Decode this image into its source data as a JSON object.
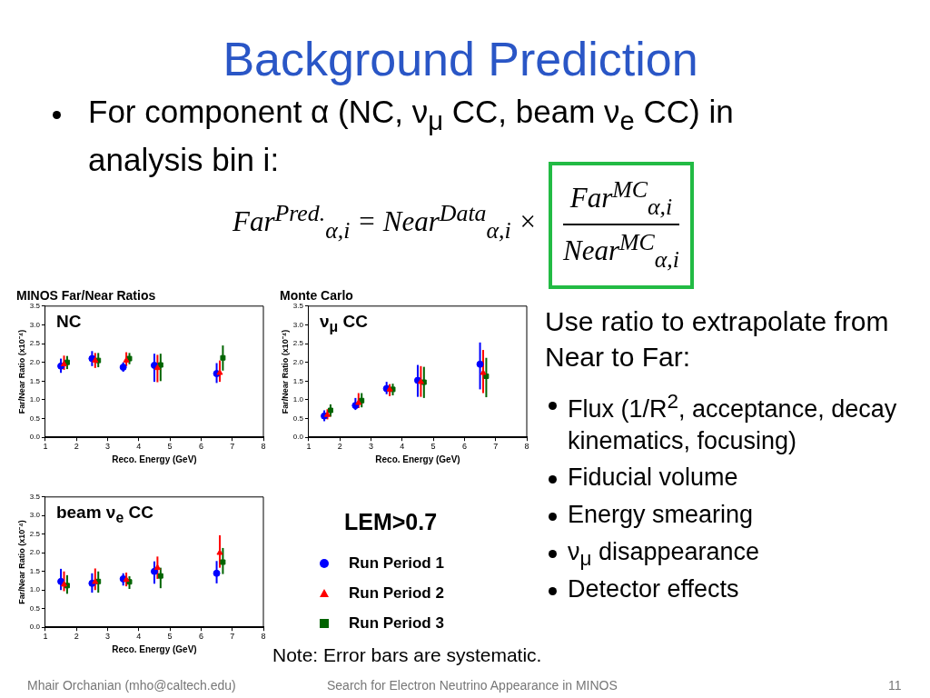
{
  "chart_data": [
    {
      "type": "other",
      "title": "Background Prediction",
      "annotations": [
        "For component α (NC, ν$_{μ}$ CC, beam ν$_{e}$ CC) in analysis bin i:",
        "Far$^{Pred.}$$_{α,i}$ = Near$^{Data}$$_{α,i}$ ×",
        "Far$^{MC}$$_{α,i}$",
        "Near$^{MC}$$_{α,i}$",
        "Use ratio to extrapolate from Near to Far:",
        "Flux (1/R$^{2}$, acceptance, decay kinematics, focusing)",
        "Fiducial volume",
        "Energy smearing",
        "ν$_{μ}$ disappearance",
        "Detector effects",
        "Note: Error bars are systematic.",
        "Mhair Orchanian (mho@caltech.edu)",
        "Search for Electron Neutrino Appearance in MINOS",
        "11"
      ]
    },
    {
      "type": "scatter",
      "title": "MINOS Far/Near Ratios",
      "subtitle": "NC",
      "xlabel": "Reco. Energy (GeV)",
      "ylabel": "Far/Near Ratio (x10⁻⁴)",
      "xlim": [
        1,
        8
      ],
      "xticks": [
        1,
        2,
        3,
        4,
        5,
        6,
        7,
        8
      ],
      "ylim": [
        0,
        3.5
      ],
      "yticks": [
        {
          "value": 0,
          "label": "0.0"
        },
        {
          "value": 0.5,
          "label": "0.5"
        },
        {
          "value": 1,
          "label": "1.0"
        },
        {
          "value": 1.5,
          "label": "1.5"
        },
        {
          "value": 2,
          "label": "2.0"
        },
        {
          "value": 2.5,
          "label": "2.5"
        },
        {
          "value": 3,
          "label": "3.0"
        },
        {
          "value": 3.5,
          "label": "3.5"
        }
      ],
      "series": [
        {
          "color": "#0000ff",
          "marker": "circle",
          "x": [
            1.5,
            2.5,
            3.5,
            4.5,
            6.5
          ],
          "values": [
            1.9,
            2.1,
            1.87,
            1.92,
            1.7
          ],
          "errors": [
            [
              1.72,
              2.1
            ],
            [
              1.9,
              2.3
            ],
            [
              1.75,
              2.0
            ],
            [
              1.48,
              2.23
            ],
            [
              1.45,
              1.98
            ]
          ]
        },
        {
          "color": "#ff0000",
          "marker": "triangle",
          "x": [
            1.6,
            2.6,
            3.6,
            4.6,
            6.6
          ],
          "values": [
            1.95,
            2.05,
            2.05,
            1.85,
            1.72
          ],
          "errors": [
            [
              1.8,
              2.18
            ],
            [
              1.85,
              2.25
            ],
            [
              1.9,
              2.27
            ],
            [
              1.47,
              2.2
            ],
            [
              1.48,
              2.05
            ]
          ]
        },
        {
          "color": "#006400",
          "marker": "square",
          "x": [
            1.7,
            2.7,
            3.7,
            4.7,
            6.7
          ],
          "values": [
            2.0,
            2.05,
            2.1,
            1.93,
            2.12
          ],
          "errors": [
            [
              1.82,
              2.17
            ],
            [
              1.87,
              2.25
            ],
            [
              1.95,
              2.25
            ],
            [
              1.5,
              2.23
            ],
            [
              1.78,
              2.45
            ]
          ]
        }
      ]
    },
    {
      "type": "scatter",
      "title": "Monte Carlo",
      "subtitle": "ν$_{μ}$ CC",
      "xlabel": "Reco. Energy (GeV)",
      "ylabel": "Far/Near Ratio (x10⁻⁴)",
      "xlim": [
        1,
        8
      ],
      "xticks": [
        1,
        2,
        3,
        4,
        5,
        6,
        7,
        8
      ],
      "ylim": [
        0,
        3.5
      ],
      "yticks": [
        {
          "value": 0,
          "label": "0.0"
        },
        {
          "value": 0.5,
          "label": "0.5"
        },
        {
          "value": 1,
          "label": "1.0"
        },
        {
          "value": 1.5,
          "label": "1.5"
        },
        {
          "value": 2,
          "label": "2.0"
        },
        {
          "value": 2.5,
          "label": "2.5"
        },
        {
          "value": 3,
          "label": "3.0"
        },
        {
          "value": 3.5,
          "label": "3.5"
        }
      ],
      "series": [
        {
          "color": "#0000ff",
          "marker": "circle",
          "x": [
            1.5,
            2.5,
            3.5,
            4.5,
            6.5
          ],
          "values": [
            0.57,
            0.85,
            1.3,
            1.52,
            1.95
          ],
          "errors": [
            [
              0.43,
              0.72
            ],
            [
              0.73,
              1.05
            ],
            [
              1.15,
              1.48
            ],
            [
              1.08,
              1.93
            ],
            [
              1.28,
              2.53
            ]
          ]
        },
        {
          "color": "#ff0000",
          "marker": "triangle",
          "x": [
            1.6,
            2.6,
            3.6,
            4.6,
            6.6
          ],
          "values": [
            0.6,
            0.92,
            1.28,
            1.48,
            1.72
          ],
          "errors": [
            [
              0.48,
              0.75
            ],
            [
              0.78,
              1.18
            ],
            [
              1.1,
              1.42
            ],
            [
              1.08,
              1.9
            ],
            [
              1.18,
              2.33
            ]
          ]
        },
        {
          "color": "#006400",
          "marker": "square",
          "x": [
            1.7,
            2.7,
            3.7,
            4.7,
            6.7
          ],
          "values": [
            0.72,
            0.98,
            1.28,
            1.47,
            1.63
          ],
          "errors": [
            [
              0.55,
              0.88
            ],
            [
              0.8,
              1.18
            ],
            [
              1.12,
              1.43
            ],
            [
              1.05,
              1.88
            ],
            [
              1.07,
              2.12
            ]
          ]
        }
      ]
    },
    {
      "type": "scatter",
      "subtitle": "beam ν$_{e}$ CC",
      "xlabel": "Reco. Energy (GeV)",
      "ylabel": "Far/Near Ratio (x10⁻⁴)",
      "legend": "right",
      "legend_title": "LEM>0.7",
      "xlim": [
        1,
        8
      ],
      "xticks": [
        1,
        2,
        3,
        4,
        5,
        6,
        7,
        8
      ],
      "ylim": [
        0,
        3.5
      ],
      "yticks": [
        {
          "value": 0,
          "label": "0.0"
        },
        {
          "value": 0.5,
          "label": "0.5"
        },
        {
          "value": 1,
          "label": "1.0"
        },
        {
          "value": 1.5,
          "label": "1.5"
        },
        {
          "value": 2,
          "label": "2.0"
        },
        {
          "value": 2.5,
          "label": "2.5"
        },
        {
          "value": 3,
          "label": "3.0"
        },
        {
          "value": 3.5,
          "label": "3.5"
        }
      ],
      "series": [
        {
          "name": "Run Period 1",
          "color": "#0000ff",
          "marker": "circle",
          "x": [
            1.5,
            2.5,
            3.5,
            4.5,
            6.5
          ],
          "values": [
            1.23,
            1.18,
            1.3,
            1.5,
            1.45
          ],
          "errors": [
            [
              1.0,
              1.57
            ],
            [
              0.93,
              1.45
            ],
            [
              1.12,
              1.45
            ],
            [
              1.17,
              1.77
            ],
            [
              1.18,
              1.78
            ]
          ]
        },
        {
          "name": "Run Period 2",
          "color": "#ff0000",
          "marker": "triangle",
          "x": [
            1.6,
            2.6,
            3.6,
            4.6,
            6.6
          ],
          "values": [
            1.15,
            1.22,
            1.28,
            1.6,
            2.0
          ],
          "errors": [
            [
              0.97,
              1.5
            ],
            [
              1.0,
              1.58
            ],
            [
              1.1,
              1.47
            ],
            [
              1.3,
              1.9
            ],
            [
              1.6,
              2.47
            ]
          ]
        },
        {
          "name": "Run Period 3",
          "color": "#006400",
          "marker": "square",
          "x": [
            1.7,
            2.7,
            3.7,
            4.7,
            6.7
          ],
          "values": [
            1.12,
            1.23,
            1.22,
            1.38,
            1.75
          ],
          "errors": [
            [
              0.9,
              1.4
            ],
            [
              0.93,
              1.5
            ],
            [
              1.03,
              1.37
            ],
            [
              1.05,
              1.6
            ],
            [
              1.43,
              2.13
            ]
          ]
        }
      ]
    }
  ]
}
